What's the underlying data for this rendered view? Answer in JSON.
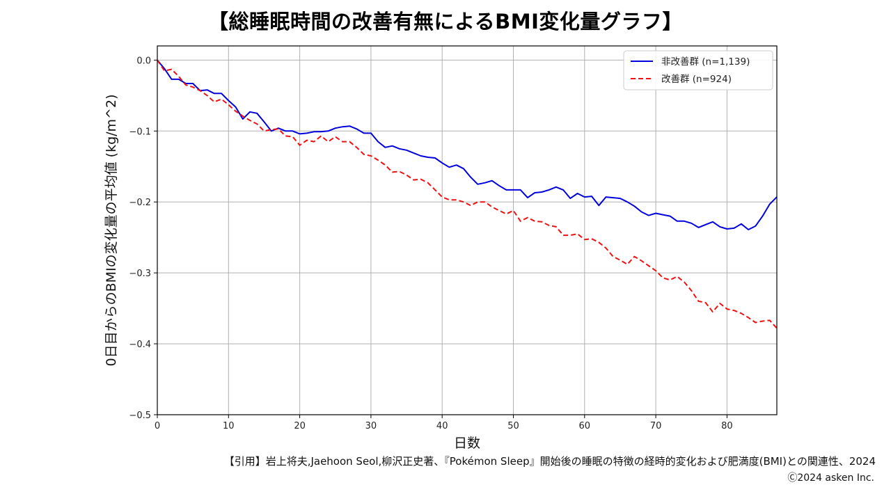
{
  "page": {
    "title": "【総睡眠時間の改善有無によるBMI変化量グラフ】",
    "citation": "【引用】岩上将夫,Jaehoon Seol,柳沢正史著、『Pokémon Sleep』開始後の睡眠の特徴の経時的変化および肥満度(BMI)との関連性、2024",
    "copyright": "Ⓒ2024 asken Inc."
  },
  "colors": {
    "non_improved": "#0000dd",
    "improved": "#ee1111",
    "grid": "#b0b0b0",
    "axis": "#000000"
  },
  "chart_data": {
    "type": "line",
    "title": "【総睡眠時間の改善有無によるBMI変化量グラフ】",
    "xlabel": "日数",
    "ylabel": "0日目からのBMIの変化量の平均値 (kg/m^2)",
    "xlim": [
      0,
      87
    ],
    "ylim": [
      -0.5,
      0.02
    ],
    "xticks": [
      0,
      10,
      20,
      30,
      40,
      50,
      60,
      70,
      80
    ],
    "xtick_labels": [
      "0",
      "10",
      "20",
      "30",
      "40",
      "50",
      "60",
      "70",
      "80"
    ],
    "yticks": [
      0.0,
      -0.1,
      -0.2,
      -0.3,
      -0.4,
      -0.5
    ],
    "ytick_labels": [
      "0.0",
      "−0.1",
      "−0.2",
      "−0.3",
      "−0.4",
      "−0.5"
    ],
    "grid": true,
    "legend_position": "top-right",
    "x": [
      0,
      1,
      2,
      3,
      4,
      5,
      6,
      7,
      8,
      9,
      10,
      11,
      12,
      13,
      14,
      15,
      16,
      17,
      18,
      19,
      20,
      21,
      22,
      23,
      24,
      25,
      26,
      27,
      28,
      29,
      30,
      31,
      32,
      33,
      34,
      35,
      36,
      37,
      38,
      39,
      40,
      41,
      42,
      43,
      44,
      45,
      46,
      47,
      48,
      49,
      50,
      51,
      52,
      53,
      54,
      55,
      56,
      57,
      58,
      59,
      60,
      61,
      62,
      63,
      64,
      65,
      66,
      67,
      68,
      69,
      70,
      71,
      72,
      73,
      74,
      75,
      76,
      77,
      78,
      79,
      80,
      81,
      82,
      83,
      84,
      85,
      86,
      87
    ],
    "series": [
      {
        "name": "非改善群 (n=1,139)",
        "style": "solid",
        "values": [
          0,
          -0.012,
          -0.027,
          -0.027,
          -0.033,
          -0.033,
          -0.043,
          -0.042,
          -0.047,
          -0.047,
          -0.057,
          -0.066,
          -0.083,
          -0.073,
          -0.075,
          -0.087,
          -0.1,
          -0.096,
          -0.1,
          -0.1,
          -0.104,
          -0.103,
          -0.101,
          -0.101,
          -0.1,
          -0.096,
          -0.094,
          -0.093,
          -0.097,
          -0.103,
          -0.103,
          -0.115,
          -0.123,
          -0.121,
          -0.125,
          -0.127,
          -0.131,
          -0.135,
          -0.137,
          -0.138,
          -0.145,
          -0.151,
          -0.148,
          -0.153,
          -0.165,
          -0.175,
          -0.173,
          -0.17,
          -0.177,
          -0.183,
          -0.183,
          -0.183,
          -0.194,
          -0.187,
          -0.186,
          -0.183,
          -0.179,
          -0.183,
          -0.195,
          -0.188,
          -0.193,
          -0.192,
          -0.205,
          -0.193,
          -0.194,
          -0.195,
          -0.2,
          -0.206,
          -0.214,
          -0.219,
          -0.216,
          -0.218,
          -0.22,
          -0.227,
          -0.227,
          -0.23,
          -0.236,
          -0.232,
          -0.228,
          -0.235,
          -0.238,
          -0.237,
          -0.231,
          -0.239,
          -0.234,
          -0.22,
          -0.203,
          -0.193
        ]
      },
      {
        "name": "改善群 (n=924)",
        "style": "dashed",
        "values": [
          0,
          -0.015,
          -0.013,
          -0.023,
          -0.035,
          -0.038,
          -0.043,
          -0.05,
          -0.059,
          -0.055,
          -0.063,
          -0.072,
          -0.079,
          -0.085,
          -0.09,
          -0.1,
          -0.098,
          -0.097,
          -0.107,
          -0.108,
          -0.12,
          -0.113,
          -0.115,
          -0.107,
          -0.115,
          -0.108,
          -0.115,
          -0.115,
          -0.123,
          -0.133,
          -0.135,
          -0.141,
          -0.148,
          -0.158,
          -0.157,
          -0.162,
          -0.169,
          -0.168,
          -0.173,
          -0.183,
          -0.193,
          -0.197,
          -0.197,
          -0.2,
          -0.205,
          -0.2,
          -0.2,
          -0.207,
          -0.212,
          -0.217,
          -0.212,
          -0.227,
          -0.222,
          -0.227,
          -0.228,
          -0.233,
          -0.235,
          -0.247,
          -0.247,
          -0.245,
          -0.253,
          -0.252,
          -0.257,
          -0.265,
          -0.277,
          -0.282,
          -0.288,
          -0.277,
          -0.283,
          -0.29,
          -0.297,
          -0.307,
          -0.31,
          -0.305,
          -0.313,
          -0.325,
          -0.34,
          -0.342,
          -0.355,
          -0.343,
          -0.351,
          -0.353,
          -0.357,
          -0.363,
          -0.37,
          -0.368,
          -0.367,
          -0.378
        ]
      }
    ]
  }
}
